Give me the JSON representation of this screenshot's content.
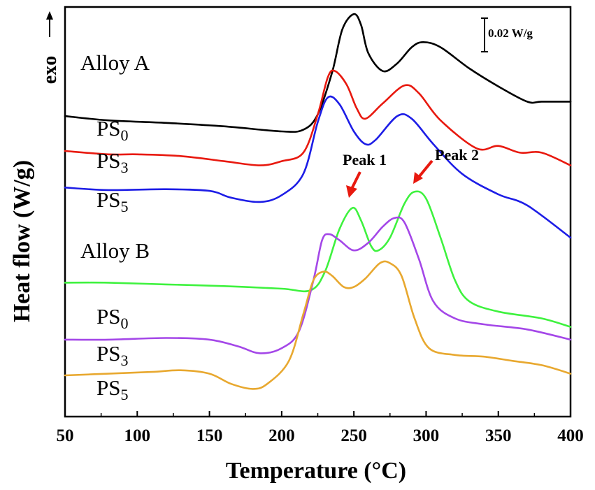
{
  "chart_data": {
    "type": "line",
    "xlabel": "Temperature (°C)",
    "ylabel": "Heat flow (W/g)",
    "xlim": [
      50,
      400
    ],
    "x_ticks": [
      "50",
      "100",
      "150",
      "200",
      "250",
      "300",
      "350",
      "400"
    ],
    "y_ticks_labeled": false,
    "grid": false,
    "exo_label": "exo",
    "scale_bar_label": "0.02 W/g",
    "group_labels": [
      "Alloy A",
      "Alloy B"
    ],
    "series": [
      {
        "name": "PS0",
        "label_main": "PS",
        "label_sub": "0",
        "group": "Alloy A",
        "color": "#000000",
        "x": [
          50,
          80,
          120,
          160,
          200,
          215,
          225,
          235,
          242,
          250,
          255,
          260,
          270,
          280,
          290,
          298,
          310,
          330,
          350,
          370,
          380,
          400
        ],
        "y": [
          0.143,
          0.138,
          0.135,
          0.131,
          0.125,
          0.127,
          0.145,
          0.195,
          0.245,
          0.263,
          0.25,
          0.217,
          0.196,
          0.205,
          0.224,
          0.23,
          0.224,
          0.199,
          0.178,
          0.16,
          0.16,
          0.16
        ]
      },
      {
        "name": "PS3",
        "label_main": "PS",
        "label_sub": "3",
        "group": "Alloy A",
        "color": "#e8190f",
        "x": [
          50,
          80,
          100,
          130,
          160,
          185,
          200,
          215,
          225,
          232,
          237,
          245,
          252,
          258,
          270,
          285,
          295,
          310,
          335,
          350,
          365,
          380,
          400
        ],
        "y": [
          0.102,
          0.098,
          0.098,
          0.096,
          0.09,
          0.085,
          0.09,
          0.1,
          0.145,
          0.189,
          0.196,
          0.18,
          0.152,
          0.14,
          0.158,
          0.179,
          0.17,
          0.138,
          0.105,
          0.108,
          0.1,
          0.1,
          0.085
        ]
      },
      {
        "name": "PS5",
        "label_main": "PS",
        "label_sub": "5",
        "group": "Alloy A",
        "color": "#1d1de6",
        "x": [
          50,
          80,
          120,
          150,
          165,
          185,
          200,
          215,
          225,
          232,
          240,
          250,
          258,
          265,
          280,
          290,
          305,
          325,
          350,
          370,
          400
        ],
        "y": [
          0.059,
          0.056,
          0.057,
          0.055,
          0.047,
          0.042,
          0.05,
          0.075,
          0.136,
          0.165,
          0.157,
          0.125,
          0.11,
          0.115,
          0.143,
          0.14,
          0.11,
          0.075,
          0.051,
          0.038,
          0.0
        ]
      },
      {
        "name": "PS0",
        "label_main": "PS",
        "label_sub": "0",
        "group": "Alloy B",
        "color": "#3ef23e",
        "x": [
          50,
          80,
          120,
          160,
          200,
          220,
          230,
          240,
          249,
          255,
          262,
          267,
          275,
          285,
          292,
          300,
          310,
          320,
          330,
          350,
          380,
          400
        ],
        "y": [
          -0.053,
          -0.053,
          -0.055,
          -0.057,
          -0.06,
          -0.062,
          -0.04,
          0.01,
          0.035,
          0.02,
          -0.01,
          -0.015,
          0.0,
          0.04,
          0.054,
          0.046,
          0.0,
          -0.05,
          -0.075,
          -0.087,
          -0.095,
          -0.105
        ]
      },
      {
        "name": "PS3",
        "label_main": "PS",
        "label_sub": "3",
        "group": "Alloy B",
        "color": "#a447e8",
        "x": [
          50,
          80,
          120,
          150,
          170,
          185,
          200,
          212,
          222,
          228,
          233,
          240,
          250,
          260,
          270,
          278,
          285,
          295,
          305,
          320,
          340,
          370,
          400
        ],
        "y": [
          -0.12,
          -0.12,
          -0.118,
          -0.12,
          -0.128,
          -0.136,
          -0.13,
          -0.11,
          -0.05,
          -0.003,
          0.004,
          -0.003,
          -0.015,
          -0.006,
          0.013,
          0.023,
          0.018,
          -0.025,
          -0.075,
          -0.095,
          -0.102,
          -0.108,
          -0.12
        ]
      },
      {
        "name": "PS5",
        "label_main": "PS",
        "label_sub": "5",
        "group": "Alloy B",
        "color": "#e8a82f",
        "x": [
          50,
          80,
          110,
          130,
          150,
          165,
          180,
          190,
          205,
          215,
          222,
          229,
          235,
          243,
          250,
          258,
          268,
          275,
          283,
          292,
          302,
          320,
          340,
          360,
          380,
          400
        ],
        "y": [
          -0.162,
          -0.16,
          -0.158,
          -0.156,
          -0.16,
          -0.172,
          -0.178,
          -0.172,
          -0.145,
          -0.09,
          -0.05,
          -0.04,
          -0.045,
          -0.058,
          -0.058,
          -0.048,
          -0.03,
          -0.03,
          -0.045,
          -0.095,
          -0.13,
          -0.138,
          -0.14,
          -0.145,
          -0.15,
          -0.16
        ]
      }
    ],
    "annotations": [
      {
        "text": "Peak 1",
        "x": 249,
        "y": 0.042,
        "color_arrow": "#e8190f"
      },
      {
        "text": "Peak 2",
        "x": 292,
        "y": 0.058,
        "color_arrow": "#e8190f"
      }
    ]
  }
}
